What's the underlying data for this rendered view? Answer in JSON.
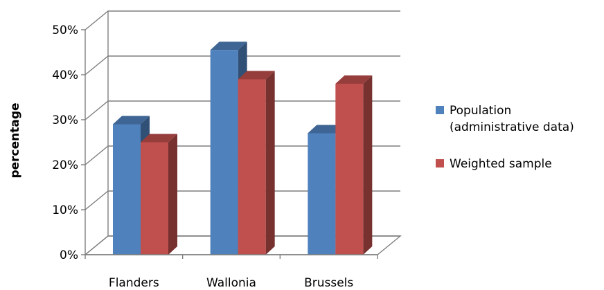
{
  "chart_data": {
    "type": "bar",
    "title": "",
    "xlabel": "",
    "ylabel": "percentage",
    "ylim": [
      0,
      50
    ],
    "y_ticks": [
      "0%",
      "10%",
      "20%",
      "30%",
      "40%",
      "50%"
    ],
    "categories": [
      "Flanders",
      "Wallonia",
      "Brussels"
    ],
    "series": [
      {
        "name": "Population\n(administrative data)",
        "values": [
          29,
          45.5,
          27
        ],
        "color": "#4f81bd"
      },
      {
        "name": "Weighted sample",
        "values": [
          25,
          39,
          38
        ],
        "color": "#c0504d"
      }
    ],
    "grid": true,
    "legend_position": "right",
    "style": "3d-clustered-column"
  }
}
